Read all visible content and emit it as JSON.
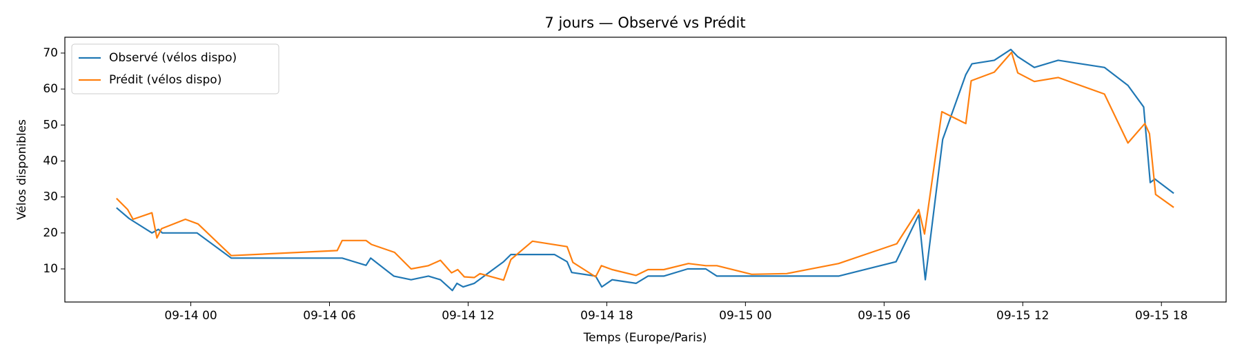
{
  "chart_data": {
    "type": "line",
    "title": "7 jours — Observé vs Prédit",
    "x_label": "Temps (Europe/Paris)",
    "y_label": "Vélos disponibles",
    "xlim": [
      "09-13 18:33",
      "09-15 20:48"
    ],
    "xticks": [
      "09-14 00",
      "09-14 06",
      "09-14 12",
      "09-14 18",
      "09-15 00",
      "09-15 06",
      "09-15 12",
      "09-15 18"
    ],
    "ylim": [
      0.8,
      74.4
    ],
    "yticks": [
      10,
      20,
      30,
      40,
      50,
      60,
      70
    ],
    "grid": false,
    "legend": "upper left",
    "series": [
      {
        "name": "Observé (vélos dispo)",
        "color": "#1f77b4",
        "x": [
          "09-13 20:47",
          "09-13 21:20",
          "09-13 22:19",
          "09-13 22:36",
          "09-13 22:46",
          "09-14 00:16",
          "09-14 01:45",
          "09-14 06:33",
          "09-14 07:35",
          "09-14 07:47",
          "09-14 08:47",
          "09-14 09:32",
          "09-14 10:17",
          "09-14 10:48",
          "09-14 11:19",
          "09-14 11:31",
          "09-14 11:47",
          "09-14 12:16",
          "09-14 13:32",
          "09-14 13:51",
          "09-14 15:44",
          "09-14 16:17",
          "09-14 16:29",
          "09-14 17:31",
          "09-14 17:47",
          "09-14 18:14",
          "09-14 19:16",
          "09-14 19:47",
          "09-14 20:28",
          "09-14 21:30",
          "09-14 22:17",
          "09-14 22:46",
          "09-15 04:02",
          "09-15 06:31",
          "09-15 07:30",
          "09-15 07:47",
          "09-15 08:32",
          "09-15 09:32",
          "09-15 09:48",
          "09-15 10:46",
          "09-15 11:29",
          "09-15 11:47",
          "09-15 12:30",
          "09-15 13:32",
          "09-15 15:32",
          "09-15 16:33",
          "09-15 17:14",
          "09-15 17:31",
          "09-15 17:43",
          "09-15 18:32"
        ],
        "values": [
          27,
          24,
          20,
          21,
          20,
          20,
          13,
          13,
          11,
          13,
          8,
          7,
          8,
          7,
          4,
          6,
          5,
          6,
          12,
          14,
          14,
          12,
          9,
          8,
          5,
          7,
          6,
          8,
          8,
          10,
          10,
          8,
          8,
          12,
          25,
          7,
          46,
          64,
          67,
          68,
          71,
          69,
          66,
          68,
          66,
          61,
          55,
          34,
          35,
          31
        ]
      },
      {
        "name": "Prédit (vélos dispo)",
        "color": "#ff7f0e",
        "x": [
          "09-13 20:47",
          "09-13 21:16",
          "09-13 21:30",
          "09-13 22:19",
          "09-13 22:32",
          "09-13 22:44",
          "09-13 23:46",
          "09-14 00:19",
          "09-14 01:45",
          "09-14 06:20",
          "09-14 06:33",
          "09-14 07:35",
          "09-14 07:49",
          "09-14 08:49",
          "09-14 09:32",
          "09-14 10:17",
          "09-14 10:48",
          "09-14 11:17",
          "09-14 11:33",
          "09-14 11:50",
          "09-14 12:16",
          "09-14 12:31",
          "09-14 13:32",
          "09-14 13:51",
          "09-14 14:47",
          "09-14 16:17",
          "09-14 16:32",
          "09-14 17:31",
          "09-14 17:46",
          "09-14 18:14",
          "09-14 19:16",
          "09-14 19:47",
          "09-14 20:28",
          "09-14 21:32",
          "09-14 22:17",
          "09-14 22:46",
          "09-15 00:16",
          "09-15 01:47",
          "09-15 04:02",
          "09-15 06:33",
          "09-15 07:30",
          "09-15 07:45",
          "09-15 08:30",
          "09-15 09:32",
          "09-15 09:46",
          "09-15 10:46",
          "09-15 11:31",
          "09-15 11:47",
          "09-15 12:30",
          "09-15 13:32",
          "09-15 15:32",
          "09-15 16:33",
          "09-15 17:17",
          "09-15 17:29",
          "09-15 17:45",
          "09-15 18:32"
        ],
        "values": [
          29.6,
          26.5,
          23.8,
          25.6,
          18.6,
          21.2,
          23.8,
          22.5,
          13.7,
          15.1,
          17.9,
          17.9,
          16.8,
          14.6,
          10,
          10.9,
          12.4,
          8.9,
          9.8,
          7.8,
          7.6,
          8.7,
          6.9,
          12.6,
          17.7,
          16.2,
          11.8,
          7.8,
          10.9,
          9.8,
          8.2,
          9.8,
          9.8,
          11.5,
          10.9,
          10.9,
          8.5,
          8.7,
          11.5,
          17,
          26.5,
          19.7,
          53.7,
          50.4,
          62.3,
          64.7,
          70.2,
          64.5,
          62.1,
          63.2,
          58.6,
          45,
          50.4,
          47.6,
          30.7,
          27.1
        ]
      }
    ]
  }
}
